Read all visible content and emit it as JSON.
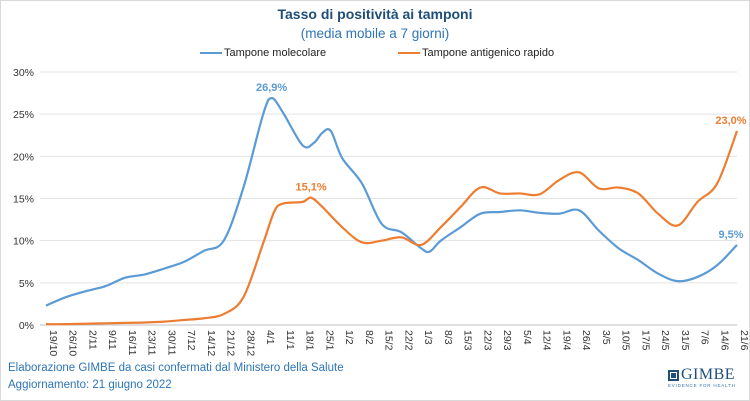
{
  "chart_data": {
    "type": "line",
    "title": "Tasso di positività ai tamponi",
    "subtitle": "(media mobile a 7 giorni)",
    "xlabel": "",
    "ylabel": "",
    "ylim": [
      0,
      30
    ],
    "yticks": [
      "0%",
      "5%",
      "10%",
      "15%",
      "20%",
      "25%",
      "30%"
    ],
    "categories": [
      "19/10",
      "26/10",
      "2/11",
      "9/11",
      "16/11",
      "23/11",
      "30/11",
      "7/12",
      "14/12",
      "21/12",
      "28/12",
      "4/1",
      "11/1",
      "18/1",
      "25/1",
      "1/2",
      "8/2",
      "15/2",
      "22/2",
      "1/3",
      "8/3",
      "15/3",
      "22/3",
      "29/3",
      "5/4",
      "12/4",
      "19/4",
      "26/4",
      "3/5",
      "10/5",
      "17/5",
      "24/5",
      "31/5",
      "7/6",
      "14/6",
      "21/6"
    ],
    "grid": true,
    "legend_position": "top",
    "series": [
      {
        "name": "Tampone molecolare",
        "color": "#5b9bd5",
        "points": [
          [
            "19/10",
            2.3
          ],
          [
            "26/10",
            3.3
          ],
          [
            "2/11",
            4.0
          ],
          [
            "9/11",
            4.6
          ],
          [
            "16/11",
            5.6
          ],
          [
            "23/11",
            6.0
          ],
          [
            "30/11",
            6.7
          ],
          [
            "7/12",
            7.5
          ],
          [
            "14/12",
            8.8
          ],
          [
            "21/12",
            10.0
          ],
          [
            "28/12",
            16.3
          ],
          [
            "4/1",
            25.0
          ],
          [
            "7/1",
            26.9
          ],
          [
            "11/1",
            25.2
          ],
          [
            "18/1",
            21.3
          ],
          [
            "22/1",
            21.6
          ],
          [
            "25/1",
            22.8
          ],
          [
            "28/1",
            23.0
          ],
          [
            "1/2",
            19.8
          ],
          [
            "8/2",
            16.8
          ],
          [
            "15/2",
            12.0
          ],
          [
            "22/2",
            11.0
          ],
          [
            "1/3",
            9.1
          ],
          [
            "4/3",
            8.7
          ],
          [
            "8/3",
            10.0
          ],
          [
            "15/3",
            11.6
          ],
          [
            "22/3",
            13.2
          ],
          [
            "29/3",
            13.4
          ],
          [
            "5/4",
            13.6
          ],
          [
            "12/4",
            13.3
          ],
          [
            "19/4",
            13.2
          ],
          [
            "26/4",
            13.6
          ],
          [
            "3/5",
            11.2
          ],
          [
            "10/5",
            9.1
          ],
          [
            "17/5",
            7.7
          ],
          [
            "24/5",
            6.1
          ],
          [
            "31/5",
            5.2
          ],
          [
            "7/6",
            5.7
          ],
          [
            "14/6",
            7.1
          ],
          [
            "21/6",
            9.5
          ]
        ],
        "annotations": [
          {
            "date": "7/1",
            "label": "26,9%"
          },
          {
            "date": "21/6",
            "label": "9,5%"
          }
        ]
      },
      {
        "name": "Tampone antigenico rapido",
        "color": "#ed7d31",
        "points": [
          [
            "19/10",
            0.1
          ],
          [
            "26/10",
            0.1
          ],
          [
            "2/11",
            0.15
          ],
          [
            "9/11",
            0.2
          ],
          [
            "16/11",
            0.25
          ],
          [
            "23/11",
            0.3
          ],
          [
            "30/11",
            0.4
          ],
          [
            "7/12",
            0.6
          ],
          [
            "14/12",
            0.8
          ],
          [
            "21/12",
            1.3
          ],
          [
            "28/12",
            3.3
          ],
          [
            "4/1",
            9.7
          ],
          [
            "8/1",
            13.5
          ],
          [
            "11/1",
            14.4
          ],
          [
            "18/1",
            14.6
          ],
          [
            "21/1",
            15.1
          ],
          [
            "25/1",
            14.0
          ],
          [
            "1/2",
            11.6
          ],
          [
            "8/2",
            9.8
          ],
          [
            "15/2",
            10.0
          ],
          [
            "22/2",
            10.4
          ],
          [
            "1/3",
            9.5
          ],
          [
            "8/3",
            11.6
          ],
          [
            "15/3",
            14.0
          ],
          [
            "22/3",
            16.3
          ],
          [
            "29/3",
            15.6
          ],
          [
            "5/4",
            15.6
          ],
          [
            "12/4",
            15.5
          ],
          [
            "19/4",
            17.2
          ],
          [
            "26/4",
            18.1
          ],
          [
            "3/5",
            16.2
          ],
          [
            "10/5",
            16.3
          ],
          [
            "17/5",
            15.6
          ],
          [
            "24/5",
            13.2
          ],
          [
            "31/5",
            11.8
          ],
          [
            "7/6",
            14.6
          ],
          [
            "14/6",
            16.8
          ],
          [
            "21/6",
            23.0
          ]
        ],
        "annotations": [
          {
            "date": "21/1",
            "label": "15,1%"
          },
          {
            "date": "21/6",
            "label": "23,0%"
          }
        ]
      }
    ]
  },
  "footer": {
    "source": "Elaborazione GIMBE da casi confermati dal Ministero della Salute",
    "updated": "Aggiornamento: 21 giugno 2022"
  },
  "logo": {
    "name": "GIMBE",
    "tagline": "EVIDENCE FOR HEALTH"
  }
}
